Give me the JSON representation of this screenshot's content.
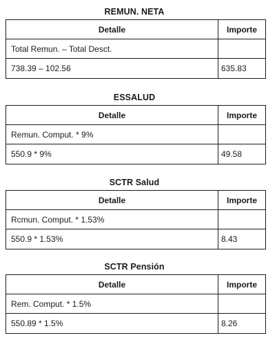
{
  "sections": [
    {
      "title": "REMUN. NETA",
      "header": {
        "detail": "Detalle",
        "amount": "Importe"
      },
      "rows": [
        {
          "detail": "Total Remun. – Total Desct.",
          "amount": ""
        },
        {
          "detail": "738.39 – 102.56",
          "amount": "635.83"
        }
      ]
    },
    {
      "title": "ESSALUD",
      "header": {
        "detail": "Detalle",
        "amount": "Importe"
      },
      "rows": [
        {
          "detail": "Remun. Comput.  * 9%",
          "amount": ""
        },
        {
          "detail": "550.9 * 9%",
          "amount": "49.58"
        }
      ]
    },
    {
      "title": "SCTR Salud",
      "header": {
        "detail": "Detalle",
        "amount": "Importe"
      },
      "rows": [
        {
          "detail": "Rcmun. Comput.  * 1.53%",
          "amount": ""
        },
        {
          "detail": "550.9 * 1.53%",
          "amount": "8.43"
        }
      ]
    },
    {
      "title": "SCTR Pensión",
      "header": {
        "detail": "Detalle",
        "amount": "Importe"
      },
      "rows": [
        {
          "detail": "Rem. Comput.  * 1.5%",
          "amount": ""
        },
        {
          "detail": "550.89 * 1.5%",
          "amount": "8.26"
        }
      ]
    }
  ]
}
